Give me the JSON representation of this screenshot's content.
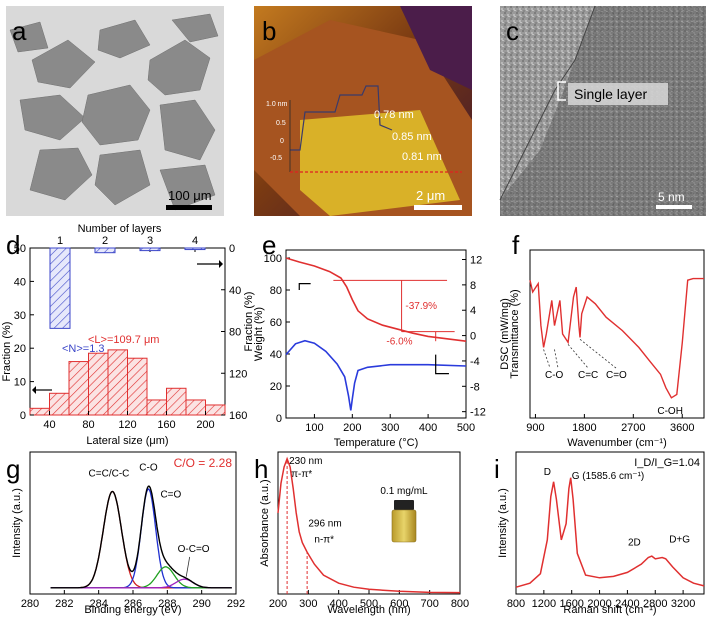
{
  "panel_labels": [
    "a",
    "b",
    "c",
    "d",
    "e",
    "f",
    "g",
    "h",
    "i"
  ],
  "images": {
    "a": {
      "scale_bar": "100 μm"
    },
    "b": {
      "scale_bar": "2 μm",
      "profile_annotations": [
        "0.78 nm",
        "0.85 nm",
        "0.81 nm"
      ],
      "profile_ticks": [
        "1.0 nm",
        "0.5",
        "0",
        "-0.5"
      ]
    },
    "c": {
      "scale_bar": "5 nm",
      "callout": "Single layer"
    }
  },
  "chart_data": [
    {
      "panel": "d",
      "type": "bar",
      "xlabel": "Lateral size (μm)",
      "ylabel": "Fraction (%)",
      "x_ticks": [
        40,
        80,
        120,
        160,
        200
      ],
      "y_ticks": [
        0,
        10,
        20,
        30,
        40,
        50
      ],
      "x_range": [
        20,
        220
      ],
      "y_range": [
        0,
        50
      ],
      "bins": [
        {
          "start": 20,
          "end": 40,
          "value": 2
        },
        {
          "start": 40,
          "end": 60,
          "value": 6.5
        },
        {
          "start": 60,
          "end": 80,
          "value": 16
        },
        {
          "start": 80,
          "end": 100,
          "value": 18.5
        },
        {
          "start": 100,
          "end": 120,
          "value": 19.5
        },
        {
          "start": 120,
          "end": 140,
          "value": 17
        },
        {
          "start": 140,
          "end": 160,
          "value": 4.5
        },
        {
          "start": 160,
          "end": 180,
          "value": 8
        },
        {
          "start": 180,
          "end": 200,
          "value": 4.5
        },
        {
          "start": 200,
          "end": 220,
          "value": 3
        }
      ],
      "annotation_L": "<L>=109.7 μm",
      "top_axis": {
        "label": "Number of layers",
        "categories": [
          "1",
          "2",
          "3",
          "4"
        ],
        "values": [
          77,
          4.5,
          2.5,
          1.5
        ]
      },
      "right_axis": {
        "label": "Fraction (%)",
        "ticks": [
          0,
          40,
          80,
          120,
          160
        ],
        "range": [
          0,
          160
        ]
      },
      "annotation_N": "<N>=1.3",
      "colors": {
        "hist": "#e03030",
        "layers": "#3b46c8"
      }
    },
    {
      "panel": "e",
      "type": "line",
      "xlabel": "Temperature (°C)",
      "ylabel": "Weight (%)",
      "right_ylabel": "DSC (mW/mg)",
      "x_ticks": [
        100,
        200,
        300,
        400,
        500
      ],
      "y_ticks": [
        0,
        20,
        40,
        60,
        80,
        100
      ],
      "right_ticks": [
        12,
        8,
        4,
        0,
        -4,
        -8,
        -12
      ],
      "x_range": [
        25,
        500
      ],
      "y_range": [
        0,
        105
      ],
      "right_range": [
        -13,
        13.5
      ],
      "weight": {
        "x": [
          25,
          60,
          100,
          140,
          170,
          185,
          200,
          215,
          240,
          280,
          320,
          360,
          400,
          450,
          500
        ],
        "y": [
          100,
          97.5,
          95,
          91.5,
          87.5,
          82,
          74,
          67,
          62,
          58,
          55.5,
          53,
          51,
          49.5,
          48
        ]
      },
      "dsc": {
        "x": [
          25,
          50,
          75,
          100,
          130,
          160,
          180,
          190,
          196,
          200,
          206,
          215,
          240,
          300,
          400,
          500
        ],
        "y": [
          -3,
          -1.3,
          -0.8,
          -1.2,
          -2.5,
          -4.5,
          -6.5,
          -9.5,
          -11.8,
          -10,
          -7.5,
          -5.5,
          -5,
          -4.6,
          -4.6,
          -4.8
        ]
      },
      "annotations": [
        "-37.9%",
        "-6.0%"
      ],
      "colors": {
        "weight": "#e03030",
        "dsc": "#2a3bdc"
      }
    },
    {
      "panel": "f",
      "type": "line",
      "xlabel": "Wavenumber (cm⁻¹)",
      "ylabel": "Transmittance (%)",
      "x_ticks": [
        900,
        1800,
        2700,
        3600
      ],
      "x_range": [
        800,
        4000
      ],
      "y_range": [
        0,
        1
      ],
      "series": [
        {
          "x": [
            800,
            850,
            950,
            1000,
            1050,
            1100,
            1200,
            1250,
            1350,
            1400,
            1500,
            1600,
            1650,
            1700,
            1720,
            1750,
            1850,
            2000,
            2200,
            2500,
            2800,
            3000,
            3200,
            3300,
            3400,
            3500,
            3600,
            3700,
            3800,
            4000
          ],
          "y": [
            0.82,
            0.75,
            0.8,
            0.55,
            0.42,
            0.5,
            0.7,
            0.55,
            0.7,
            0.5,
            0.45,
            0.72,
            0.78,
            0.55,
            0.48,
            0.62,
            0.72,
            0.68,
            0.6,
            0.52,
            0.42,
            0.34,
            0.26,
            0.18,
            0.12,
            0.14,
            0.45,
            0.82,
            0.83,
            0.83
          ]
        }
      ],
      "annotations": [
        "C-O",
        "C=C",
        "C=O",
        "C-OH"
      ],
      "colors": {
        "line": "#e03030"
      }
    },
    {
      "panel": "g",
      "type": "line",
      "xlabel": "Binding energy (eV)",
      "ylabel": "Intensity (a.u.)",
      "x_ticks": [
        280,
        282,
        284,
        286,
        288,
        290,
        292
      ],
      "x_range": [
        280,
        292
      ],
      "y_range": [
        0,
        1.15
      ],
      "peaks": [
        {
          "label": "C=C/C-C",
          "center": 284.8,
          "height": 0.78,
          "width": 0.95,
          "color": "#d02020"
        },
        {
          "label": "C-O",
          "center": 286.9,
          "height": 0.8,
          "width": 0.75,
          "color": "#2030d0"
        },
        {
          "label": "C=O",
          "center": 287.9,
          "height": 0.17,
          "width": 0.9,
          "color": "#20a020"
        },
        {
          "label": "O-C=O",
          "center": 289.0,
          "height": 0.07,
          "width": 0.9,
          "color": "#a020c0"
        }
      ],
      "baseline": 0.05,
      "baseline_color": "#30c030",
      "envelope_color": "#000000",
      "ratio_label": "C/O = 2.28"
    },
    {
      "panel": "h",
      "type": "line",
      "xlabel": "Wavelength (nm)",
      "ylabel": "Absorbance (a.u.)",
      "x_ticks": [
        200,
        300,
        400,
        500,
        600,
        700,
        800
      ],
      "x_range": [
        200,
        800
      ],
      "y_range": [
        0,
        1.05
      ],
      "series": [
        {
          "x": [
            200,
            210,
            220,
            230,
            240,
            250,
            260,
            270,
            280,
            296,
            320,
            350,
            400,
            450,
            500,
            600,
            700,
            800
          ],
          "y": [
            0.6,
            0.82,
            0.94,
            1.0,
            0.94,
            0.78,
            0.6,
            0.46,
            0.38,
            0.31,
            0.22,
            0.14,
            0.08,
            0.05,
            0.035,
            0.02,
            0.012,
            0.01
          ]
        }
      ],
      "peak_labels": [
        "230 nm",
        "π-π*",
        "296 nm",
        "n-π*"
      ],
      "markers": [
        230,
        296
      ],
      "inset_label": "0.1 mg/mL",
      "colors": {
        "line": "#e03030"
      }
    },
    {
      "panel": "i",
      "type": "line",
      "xlabel": "Raman shift (cm⁻¹)",
      "ylabel": "Intensity (a.u.)",
      "x_ticks": [
        800,
        1200,
        1600,
        2000,
        2400,
        2800,
        3200
      ],
      "x_range": [
        800,
        3500
      ],
      "y_range": [
        0,
        1.05
      ],
      "series": [
        {
          "x": [
            800,
            1000,
            1150,
            1250,
            1300,
            1340,
            1380,
            1450,
            1520,
            1560,
            1586,
            1620,
            1680,
            1800,
            2000,
            2200,
            2400,
            2600,
            2700,
            2750,
            2800,
            2900,
            2950,
            3050,
            3200,
            3350,
            3500
          ],
          "y": [
            0.05,
            0.08,
            0.15,
            0.4,
            0.72,
            0.83,
            0.7,
            0.4,
            0.52,
            0.78,
            0.86,
            0.7,
            0.3,
            0.14,
            0.12,
            0.13,
            0.16,
            0.22,
            0.27,
            0.28,
            0.26,
            0.27,
            0.26,
            0.2,
            0.12,
            0.08,
            0.06
          ]
        }
      ],
      "peak_labels": [
        "D",
        "G (1585.6 cm⁻¹)",
        "2D",
        "D+G"
      ],
      "ratio_label": "I_D/I_G=1.04",
      "colors": {
        "line": "#e03030"
      }
    }
  ]
}
